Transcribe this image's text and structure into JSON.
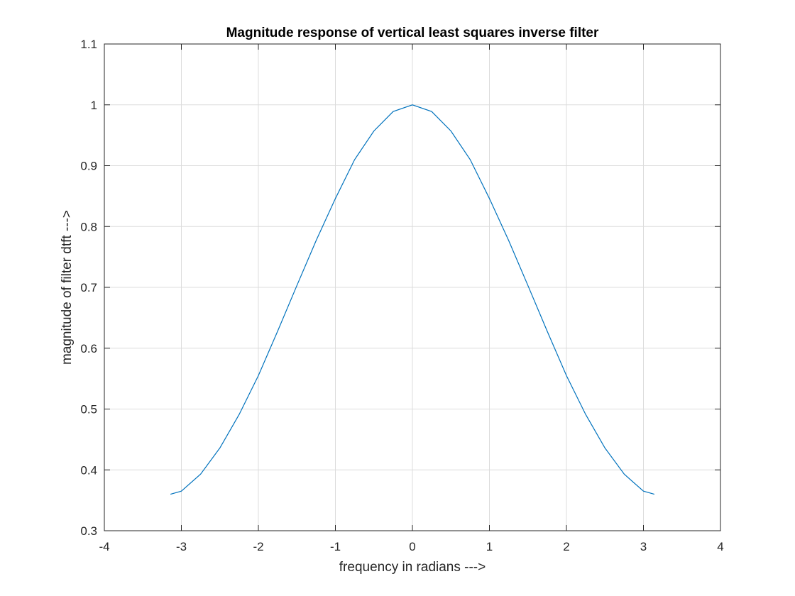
{
  "chart_data": {
    "type": "line",
    "title": "Magnitude response of vertical least squares inverse filter",
    "xlabel": "frequency in radians --->",
    "ylabel": "magnitude of filter dtft  --->",
    "xlim": [
      -4,
      4
    ],
    "ylim": [
      0.3,
      1.1
    ],
    "xticks": [
      -4,
      -3,
      -2,
      -1,
      0,
      1,
      2,
      3,
      4
    ],
    "xtick_labels": [
      "-4",
      "-3",
      "-2",
      "-1",
      "0",
      "1",
      "2",
      "3",
      "4"
    ],
    "yticks": [
      0.3,
      0.4,
      0.5,
      0.6,
      0.7,
      0.8,
      0.9,
      1.0,
      1.1
    ],
    "ytick_labels": [
      "0.3",
      "0.4",
      "0.5",
      "0.6",
      "0.7",
      "0.8",
      "0.9",
      "1",
      "1.1"
    ],
    "grid": true,
    "series": [
      {
        "color": "#0072bd",
        "x": [
          -3.1416,
          -3.0,
          -2.75,
          -2.5,
          -2.25,
          -2.0,
          -1.75,
          -1.5,
          -1.25,
          -1.0,
          -0.75,
          -0.5,
          -0.25,
          0.0,
          0.25,
          0.5,
          0.75,
          1.0,
          1.25,
          1.5,
          1.75,
          2.0,
          2.25,
          2.5,
          2.75,
          3.0,
          3.1416
        ],
        "y": [
          0.36,
          0.365,
          0.393,
          0.436,
          0.491,
          0.555,
          0.628,
          0.703,
          0.777,
          0.846,
          0.91,
          0.957,
          0.989,
          1.0,
          0.989,
          0.957,
          0.91,
          0.846,
          0.777,
          0.703,
          0.628,
          0.555,
          0.491,
          0.436,
          0.393,
          0.365,
          0.36
        ]
      }
    ]
  }
}
